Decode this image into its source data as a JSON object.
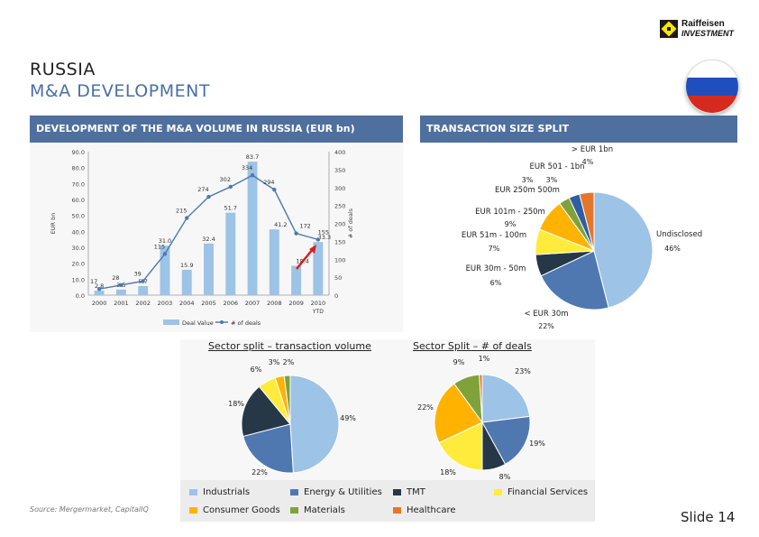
{
  "logo": {
    "line1": "Raiffeisen",
    "line2": "INVESTMENT"
  },
  "title": {
    "line1": "RUSSIA",
    "line2": "M&A DEVELOPMENT"
  },
  "flag": {
    "colors": [
      "#ffffff",
      "#1f4fbf",
      "#d52b1e"
    ]
  },
  "left_panel": {
    "header": "DEVELOPMENT OF THE M&A VOLUME IN RUSSIA (EUR bn)"
  },
  "right_panel": {
    "header": "TRANSACTION SIZE SPLIT"
  },
  "source": "Source: Mergermarket, CapitalIQ",
  "slide": "Slide 14",
  "legend": [
    {
      "label": "Industrials",
      "color": "#9dc3e6"
    },
    {
      "label": "Energy & Utilities",
      "color": "#4f78b0"
    },
    {
      "label": "TMT",
      "color": "#263748"
    },
    {
      "label": "Financial Services",
      "color": "#ffeb3b"
    },
    {
      "label": "Consumer Goods",
      "color": "#ffb300"
    },
    {
      "label": "Materials",
      "color": "#7fa23a"
    },
    {
      "label": "Healthcare",
      "color": "#e4762a"
    }
  ],
  "chart_data": [
    {
      "type": "bar",
      "title": "",
      "categories": [
        "2000",
        "2001",
        "2002",
        "2003",
        "2004",
        "2005",
        "2006",
        "2007",
        "2008",
        "2009",
        "2010 YTD"
      ],
      "category_labels": [
        "2000",
        "2001",
        "2002",
        "2003",
        "2004",
        "2005",
        "2006",
        "2007",
        "2008",
        "2009",
        "2010"
      ],
      "category_sub": "YTD",
      "series": [
        {
          "name": "Deal Value",
          "type": "bar",
          "axis": "left",
          "color": "#9dc3e6",
          "values": [
            2.8,
            3.5,
            5.7,
            31.0,
            15.9,
            32.4,
            51.7,
            83.7,
            41.2,
            18.4,
            33.3
          ],
          "labels": [
            "2.8",
            "3.5",
            "5.7",
            "31.0",
            "15.9",
            "32.4",
            "51.7",
            "83.7",
            "41.2",
            "18.4",
            "33.3"
          ]
        },
        {
          "name": "# of deals",
          "type": "line",
          "axis": "right",
          "color": "#4f78b0",
          "values": [
            17,
            28,
            39,
            115,
            215,
            274,
            302,
            334,
            294,
            172,
            155
          ],
          "labels": [
            "17",
            "28",
            "39",
            "115",
            "215",
            "274",
            "302",
            "334",
            "294",
            "172",
            "155"
          ]
        }
      ],
      "ylabel": "EUR bn",
      "y2label": "# of deals",
      "ylim": [
        0,
        90
      ],
      "y2lim": [
        0,
        400
      ],
      "yticks": [
        "0.0",
        "10.0",
        "20.0",
        "30.0",
        "40.0",
        "50.0",
        "60.0",
        "70.0",
        "80.0",
        "90.0"
      ],
      "y2ticks": [
        "0",
        "50",
        "100",
        "150",
        "200",
        "250",
        "300",
        "350",
        "400"
      ],
      "grid": false,
      "legend": "bottom"
    },
    {
      "type": "pie",
      "title": "",
      "labels": [
        "Undisclosed",
        "< EUR 30m",
        "EUR 30m - 50m",
        "EUR 51m - 100m",
        "EUR 101m - 250m",
        "EUR 250m 500m",
        "EUR 501 - 1bn",
        "> EUR 1bn"
      ],
      "values": [
        46,
        22,
        6,
        7,
        9,
        3,
        3,
        4
      ],
      "value_labels": [
        "46%",
        "22%",
        "6%",
        "7%",
        "9%",
        "3%",
        "3%",
        "4%"
      ],
      "colors": [
        "#9dc3e6",
        "#4f78b0",
        "#263748",
        "#ffeb3b",
        "#ffb300",
        "#7fa23a",
        "#2e5fa3",
        "#e4762a"
      ]
    },
    {
      "type": "pie",
      "title": "Sector split – transaction volume",
      "labels": [
        "Industrials",
        "Energy & Utilities",
        "TMT",
        "Financial Services",
        "Consumer Goods",
        "Materials",
        "Healthcare"
      ],
      "values": [
        49,
        22,
        18,
        6,
        3,
        2,
        0
      ],
      "value_labels": [
        "49%",
        "22%",
        "18%",
        "6%",
        "3%",
        "2%",
        ""
      ],
      "colors": [
        "#9dc3e6",
        "#4f78b0",
        "#263748",
        "#ffeb3b",
        "#ffb300",
        "#7fa23a",
        "#e4762a"
      ]
    },
    {
      "type": "pie",
      "title": "Sector Split – # of deals",
      "labels": [
        "Industrials",
        "Energy & Utilities",
        "TMT",
        "Financial Services",
        "Consumer Goods",
        "Materials",
        "Healthcare"
      ],
      "values": [
        23,
        19,
        8,
        18,
        22,
        9,
        1
      ],
      "value_labels": [
        "23%",
        "19%",
        "8%",
        "18%",
        "22%",
        "9%",
        "1%"
      ],
      "colors": [
        "#9dc3e6",
        "#4f78b0",
        "#263748",
        "#ffeb3b",
        "#ffb300",
        "#7fa23a",
        "#e4762a"
      ]
    }
  ]
}
